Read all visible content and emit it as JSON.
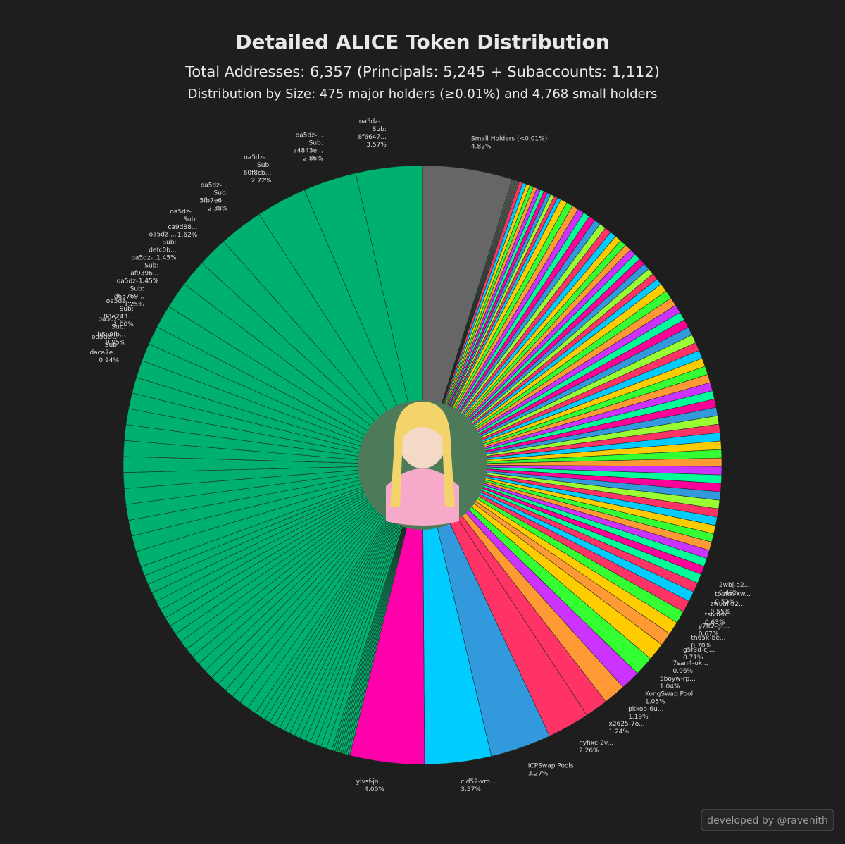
{
  "chart_data": {
    "type": "pie",
    "title": "Detailed ALICE Token Distribution",
    "subtitle": "Total Addresses: 6,357 (Principals: 5,245 + Subaccounts: 1,112)",
    "subtitle2": "Distribution by Size: 475 major holders (≥0.01%) and 4,768 small holders",
    "credit": "developed by @ravenith",
    "start_angle": 90,
    "direction": "clockwise",
    "categories": [
      [
        "Small Holders (<0.01%)"
      ],
      null,
      null,
      null,
      null,
      null,
      null,
      null,
      null,
      null,
      null,
      null,
      null,
      null,
      null,
      null,
      null,
      null,
      null,
      null,
      null,
      null,
      null,
      null,
      null,
      null,
      null,
      null,
      null,
      null,
      null,
      null,
      null,
      null,
      null,
      null,
      null,
      null,
      null,
      null,
      null,
      null,
      null,
      null,
      null,
      null,
      null,
      null,
      null,
      null,
      null,
      null,
      null,
      null,
      null,
      null,
      null,
      null,
      null,
      null,
      null,
      null,
      null,
      null,
      null,
      null,
      null,
      null,
      null,
      null,
      null,
      null,
      null,
      null,
      null,
      null,
      null,
      [
        "2wbj-e2..."
      ],
      [
        "tpptm-xw..."
      ],
      [
        "zwuaf-a2..."
      ],
      [
        "tslv6-tc..."
      ],
      [
        "y7ft2-gt..."
      ],
      [
        "th65x-be..."
      ],
      [
        "g5f3d-cj..."
      ],
      [
        "7san4-ok..."
      ],
      [
        "5boyw-rp..."
      ],
      [
        "KongSwap Pool"
      ],
      [
        "pkkoo-6u..."
      ],
      [
        "x2625-7o..."
      ],
      [
        "hyhxc-2v..."
      ],
      [
        "ICPSwap Pools"
      ],
      [
        "cld52-vm..."
      ],
      [
        "ylvsf-jo..."
      ],
      null,
      null,
      null,
      null,
      null,
      null,
      null,
      null,
      null,
      null,
      null,
      null,
      null,
      null,
      null,
      null,
      null,
      null,
      null,
      null,
      null,
      null,
      null,
      null,
      null,
      null,
      null,
      null,
      null,
      null,
      null,
      null,
      null,
      null,
      null,
      null,
      null,
      null,
      null,
      null,
      null,
      null,
      null,
      null,
      null,
      null,
      null,
      null,
      null,
      null,
      null,
      null,
      null,
      null,
      null,
      null,
      null,
      [
        "oa5dz-...",
        "Sub:",
        "daca7e..."
      ],
      [
        "oa5dz-...",
        "Sub:",
        "b8b9fb..."
      ],
      [
        "oa5dz-...",
        "Sub:",
        "83e243..."
      ],
      [
        "oa5dz-...",
        "Sub:",
        "d65769..."
      ],
      [
        "oa5dz-...",
        "Sub:",
        "af9396..."
      ],
      [
        "oa5dz-...",
        "Sub:",
        "defc0b..."
      ],
      [
        "oa5dz-...",
        "Sub:",
        "ca9d88..."
      ],
      [
        "oa5dz-...",
        "Sub:",
        "5fb7e6..."
      ],
      [
        "oa5dz-...",
        "Sub:",
        "60f8cb..."
      ],
      [
        "oa5dz-...",
        "Sub:",
        "a4843e..."
      ],
      [
        "oa5dz-...",
        "Sub:",
        "8f6647..."
      ]
    ],
    "values": [
      4.82,
      0.05,
      0.05,
      0.05,
      0.05,
      0.05,
      0.05,
      0.05,
      0.05,
      0.2,
      0.2,
      0.2,
      0.2,
      0.2,
      0.2,
      0.2,
      0.2,
      0.2,
      0.2,
      0.2,
      0.2,
      0.35,
      0.35,
      0.35,
      0.35,
      0.35,
      0.35,
      0.35,
      0.35,
      0.35,
      0.35,
      0.35,
      0.35,
      0.35,
      0.35,
      0.35,
      0.35,
      0.35,
      0.35,
      0.35,
      0.35,
      0.45,
      0.45,
      0.45,
      0.45,
      0.45,
      0.45,
      0.45,
      0.45,
      0.45,
      0.45,
      0.45,
      0.45,
      0.45,
      0.45,
      0.45,
      0.45,
      0.45,
      0.45,
      0.45,
      0.45,
      0.45,
      0.45,
      0.45,
      0.45,
      0.45,
      0.45,
      0.45,
      0.45,
      0.45,
      0.45,
      0.45,
      0.45,
      0.45,
      0.45,
      0.45,
      0.45,
      0.49,
      0.52,
      0.55,
      0.63,
      0.67,
      0.7,
      0.71,
      0.96,
      1.04,
      1.05,
      1.19,
      1.24,
      2.26,
      3.27,
      3.57,
      4.0,
      0.1,
      0.1,
      0.1,
      0.1,
      0.1,
      0.1,
      0.1,
      0.1,
      0.1,
      0.1,
      0.3,
      0.3,
      0.3,
      0.3,
      0.3,
      0.3,
      0.3,
      0.3,
      0.3,
      0.3,
      0.3,
      0.3,
      0.3,
      0.3,
      0.3,
      0.5,
      0.5,
      0.5,
      0.5,
      0.5,
      0.5,
      0.5,
      0.5,
      0.5,
      0.5,
      0.5,
      0.5,
      0.5,
      0.5,
      0.5,
      0.5,
      0.5,
      0.5,
      0.5,
      0.5,
      0.85,
      0.85,
      0.85,
      0.85,
      0.85,
      0.85,
      0.85,
      0.85,
      0.85,
      0.85,
      0.85,
      0.85,
      0.94,
      0.95,
      1.0,
      1.25,
      1.45,
      1.45,
      1.62,
      2.38,
      2.72,
      2.86,
      3.57
    ],
    "value_labels": [
      "4.82%",
      null,
      null,
      null,
      null,
      null,
      null,
      null,
      null,
      null,
      null,
      null,
      null,
      null,
      null,
      null,
      null,
      null,
      null,
      null,
      null,
      null,
      null,
      null,
      null,
      null,
      null,
      null,
      null,
      null,
      null,
      null,
      null,
      null,
      null,
      null,
      null,
      null,
      null,
      null,
      null,
      null,
      null,
      null,
      null,
      null,
      null,
      null,
      null,
      null,
      null,
      null,
      null,
      null,
      null,
      null,
      null,
      null,
      null,
      null,
      null,
      null,
      null,
      null,
      null,
      null,
      null,
      null,
      null,
      null,
      null,
      null,
      null,
      null,
      null,
      null,
      null,
      "0.49%",
      "0.52%",
      "0.55%",
      "0.63%",
      "0.67%",
      "0.70%",
      "0.71%",
      "0.96%",
      "1.04%",
      "1.05%",
      "1.19%",
      "1.24%",
      "2.26%",
      "3.27%",
      "3.57%",
      "4.00%",
      null,
      null,
      null,
      null,
      null,
      null,
      null,
      null,
      null,
      null,
      null,
      null,
      null,
      null,
      null,
      null,
      null,
      null,
      null,
      null,
      null,
      null,
      null,
      null,
      null,
      null,
      null,
      null,
      null,
      null,
      null,
      null,
      null,
      null,
      null,
      null,
      null,
      null,
      null,
      null,
      null,
      null,
      null,
      null,
      null,
      null,
      null,
      null,
      null,
      null,
      null,
      null,
      null,
      null,
      null,
      null,
      null,
      "0.94%",
      "0.95%",
      "1.00%",
      "1.25%",
      "1.45%",
      "1.45%",
      "1.62%",
      "2.38%",
      "2.72%",
      "2.86%",
      "3.57%"
    ],
    "colors": [
      "#666666",
      "#8a7a6a",
      "#6a8a8a",
      "#8a6a7a",
      "#7a8a6a",
      "#8a7a6a",
      "#6a8a8a",
      "#8a6a7a",
      "#7a8a6a",
      "#ff3366",
      "#00ccff",
      "#ffcc00",
      "#33ff33",
      "#ff9933",
      "#cc33ff",
      "#00ff99",
      "#ff0099",
      "#3399dd",
      "#99ff33",
      "#ff3366",
      "#00ccff",
      "#ffcc00",
      "#33ff33",
      "#ff9933",
      "#cc33ff",
      "#00ff99",
      "#ff0099",
      "#3399dd",
      "#99ff33",
      "#ff3366",
      "#00ccff",
      "#ffcc00",
      "#33ff33",
      "#ff9933",
      "#cc33ff",
      "#00ff99",
      "#ff0099",
      "#3399dd",
      "#99ff33",
      "#ff3366",
      "#00ccff",
      "#ffcc00",
      "#33ff33",
      "#ff9933",
      "#cc33ff",
      "#00ff99",
      "#ff0099",
      "#3399dd",
      "#99ff33",
      "#ff3366",
      "#00ccff",
      "#ffcc00",
      "#33ff33",
      "#ff9933",
      "#cc33ff",
      "#00ff99",
      "#ff0099",
      "#3399dd",
      "#99ff33",
      "#ff3366",
      "#00ccff",
      "#ffcc00",
      "#33ff33",
      "#ff9933",
      "#cc33ff",
      "#00ff99",
      "#ff0099",
      "#3399dd",
      "#99ff33",
      "#ff3366",
      "#00ccff",
      "#ffcc00",
      "#33ff33",
      "#ff9933",
      "#cc33ff",
      "#00ff99",
      "#ff0099",
      "#00ff99",
      "#ff3366",
      "#00ccff",
      "#ff3366",
      "#33ff33",
      "#ffcc00",
      "#ff9933",
      "#ffcc00",
      "#33ff33",
      "#cc33ff",
      "#ff9933",
      "#ff3366",
      "#ff3366",
      "#3399dd",
      "#00ccff",
      "#ff00aa",
      "#00b06e",
      "#00b06e",
      "#00b06e",
      "#00b06e",
      "#00b06e",
      "#00b06e",
      "#00b06e",
      "#00b06e",
      "#00b06e",
      "#00b06e",
      "#00b06e",
      "#00b06e",
      "#00b06e",
      "#00b06e",
      "#00b06e",
      "#00b06e",
      "#00b06e",
      "#00b06e",
      "#00b06e",
      "#00b06e",
      "#00b06e",
      "#00b06e",
      "#00b06e",
      "#00b06e",
      "#00b06e",
      "#00b06e",
      "#00b06e",
      "#00b06e",
      "#00b06e",
      "#00b06e",
      "#00b06e",
      "#00b06e",
      "#00b06e",
      "#00b06e",
      "#00b06e",
      "#00b06e",
      "#00b06e",
      "#00b06e",
      "#00b06e",
      "#00b06e",
      "#00b06e",
      "#00b06e",
      "#00b06e",
      "#00b06e",
      "#00b06e",
      "#00b06e",
      "#00b06e",
      "#00b06e",
      "#00b06e",
      "#00b06e",
      "#00b06e",
      "#00b06e",
      "#00b06e",
      "#00b06e",
      "#00b06e",
      "#00b06e",
      "#00b06e",
      "#00b06e",
      "#00b06e",
      "#00b06e",
      "#00b06e",
      "#00b06e",
      "#00b06e",
      "#00b06e",
      "#00b06e",
      "#00b06e",
      "#00b06e",
      "#00b06e"
    ]
  }
}
